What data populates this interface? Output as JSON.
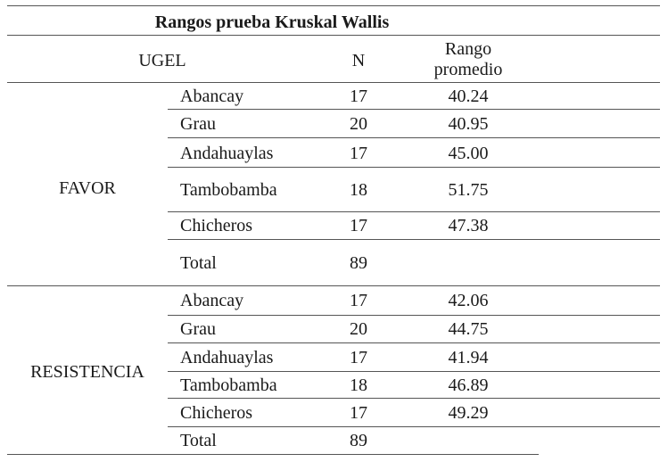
{
  "table": {
    "title": "Rangos prueba Kruskal Wallis",
    "headers": {
      "ugel": "UGEL",
      "n": "N",
      "rango_line1": "Rango",
      "rango_line2": "promedio"
    },
    "groups": [
      {
        "label": "FAVOR",
        "rows": [
          {
            "name": "Abancay",
            "n": "17",
            "rango": "40.24"
          },
          {
            "name": "Grau",
            "n": "20",
            "rango": "40.95"
          },
          {
            "name": "Andahuaylas",
            "n": "17",
            "rango": "45.00"
          },
          {
            "name": "Tambobamba",
            "n": "18",
            "rango": "51.75"
          },
          {
            "name": "Chicheros",
            "n": "17",
            "rango": "47.38"
          },
          {
            "name": "Total",
            "n": "89",
            "rango": ""
          }
        ]
      },
      {
        "label": "RESISTENCIA",
        "rows": [
          {
            "name": "Abancay",
            "n": "17",
            "rango": "42.06"
          },
          {
            "name": "Grau",
            "n": "20",
            "rango": "44.75"
          },
          {
            "name": "Andahuaylas",
            "n": "17",
            "rango": "41.94"
          },
          {
            "name": "Tambobamba",
            "n": "18",
            "rango": "46.89"
          },
          {
            "name": "Chicheros",
            "n": "17",
            "rango": "49.29"
          },
          {
            "name": "Total",
            "n": "89",
            "rango": ""
          }
        ]
      }
    ]
  }
}
